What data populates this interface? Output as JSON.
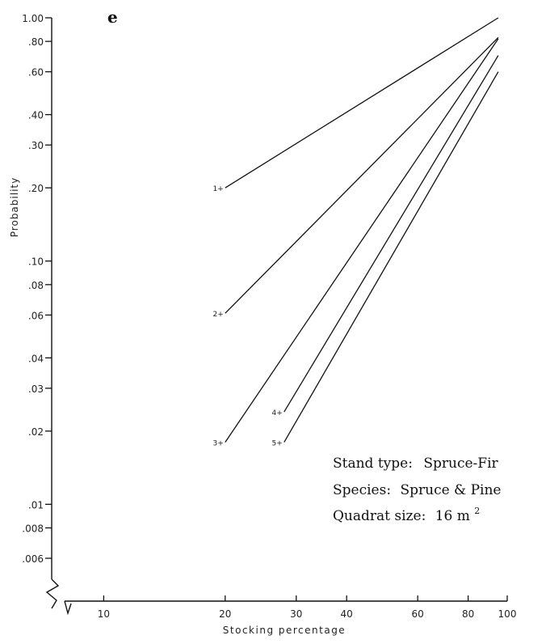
{
  "panel_letter": "e",
  "chart_data": {
    "type": "line",
    "title": "",
    "xlabel": "Stocking percentage",
    "ylabel": "Probability",
    "x_scale": "log",
    "y_scale": "log",
    "xlim": [
      8,
      100
    ],
    "ylim": [
      0.004,
      1.0
    ],
    "x_ticks": [
      {
        "value": 10,
        "label": "10"
      },
      {
        "value": 20,
        "label": "20"
      },
      {
        "value": 30,
        "label": "30"
      },
      {
        "value": 40,
        "label": "40"
      },
      {
        "value": 60,
        "label": "60"
      },
      {
        "value": 80,
        "label": "80"
      },
      {
        "value": 100,
        "label": "100"
      }
    ],
    "y_ticks": [
      {
        "value": 1.0,
        "label": "1.00"
      },
      {
        "value": 0.8,
        "label": ".80"
      },
      {
        "value": 0.6,
        "label": ".60"
      },
      {
        "value": 0.4,
        "label": ".40"
      },
      {
        "value": 0.3,
        "label": ".30"
      },
      {
        "value": 0.2,
        "label": ".20"
      },
      {
        "value": 0.1,
        "label": ".10"
      },
      {
        "value": 0.08,
        "label": ".08"
      },
      {
        "value": 0.06,
        "label": ".06"
      },
      {
        "value": 0.04,
        "label": ".04"
      },
      {
        "value": 0.03,
        "label": ".03"
      },
      {
        "value": 0.02,
        "label": ".02"
      },
      {
        "value": 0.01,
        "label": ".01"
      },
      {
        "value": 0.008,
        "label": ".008"
      },
      {
        "value": 0.006,
        "label": ".006"
      }
    ],
    "series": [
      {
        "name": "1+",
        "x": [
          20,
          95
        ],
        "y": [
          0.2,
          1.0
        ]
      },
      {
        "name": "2+",
        "x": [
          20,
          95
        ],
        "y": [
          0.061,
          0.83
        ]
      },
      {
        "name": "3+",
        "x": [
          20,
          95
        ],
        "y": [
          0.018,
          0.82
        ]
      },
      {
        "name": "4+",
        "x": [
          28,
          95
        ],
        "y": [
          0.024,
          0.7
        ]
      },
      {
        "name": "5+",
        "x": [
          28,
          95
        ],
        "y": [
          0.018,
          0.6
        ]
      }
    ],
    "grid": false,
    "legend": "none",
    "annotations": [
      {
        "label": "Stand type:",
        "value": "Spruce-Fir"
      },
      {
        "label": "Species:",
        "value": "Spruce & Pine"
      },
      {
        "label": "Quadrat size:",
        "value": "16 m",
        "superscript": "2"
      }
    ]
  }
}
